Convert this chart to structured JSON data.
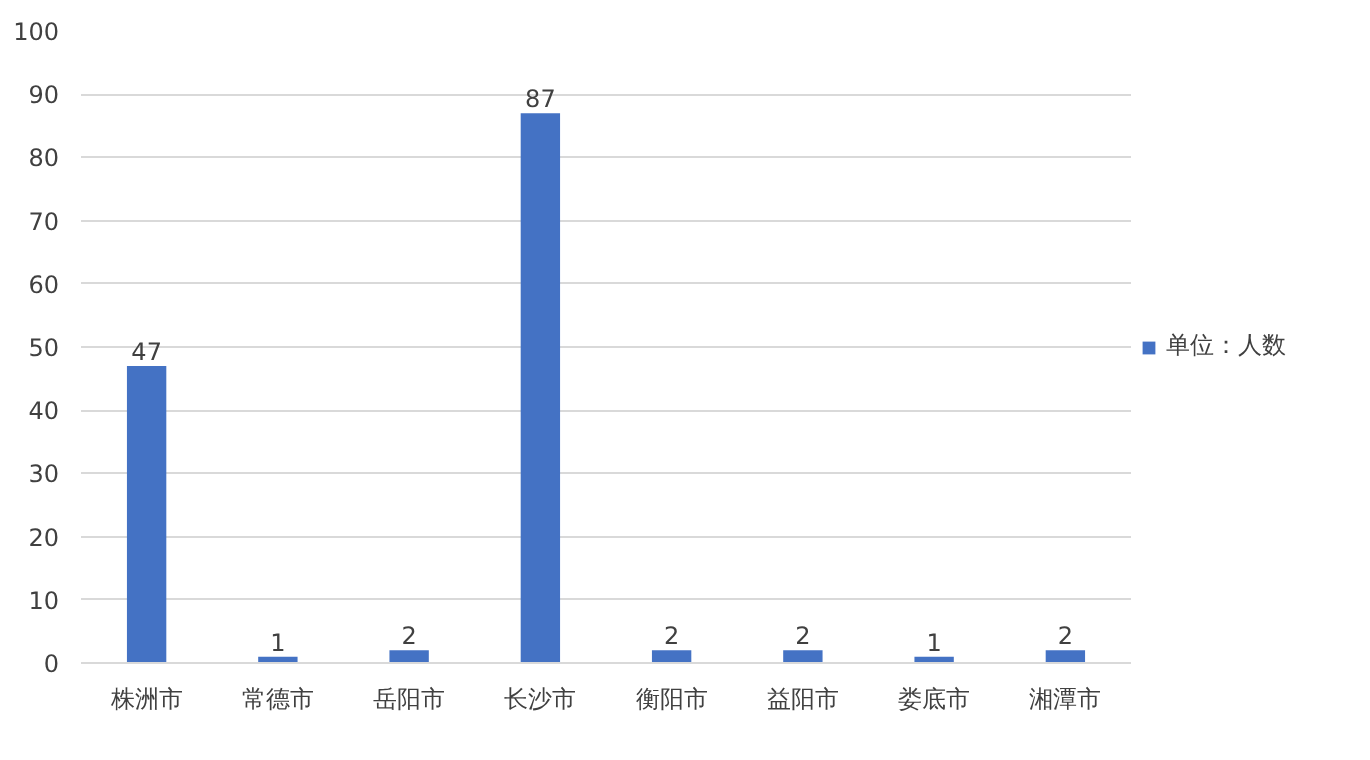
{
  "chart_data": {
    "type": "bar",
    "categories": [
      "株洲市",
      "常德市",
      "岳阳市",
      "长沙市",
      "衡阳市",
      "益阳市",
      "娄底市",
      "湘潭市"
    ],
    "series": [
      {
        "name": "单位：人数",
        "color": "#4472c4",
        "values": [
          47,
          1,
          2,
          87,
          2,
          2,
          1,
          2
        ]
      }
    ],
    "ylim": [
      0,
      100
    ],
    "yticks": [
      0,
      10,
      20,
      30,
      40,
      50,
      60,
      70,
      80,
      90,
      100
    ],
    "grid": "y",
    "legend": "right",
    "data_labels": true
  }
}
